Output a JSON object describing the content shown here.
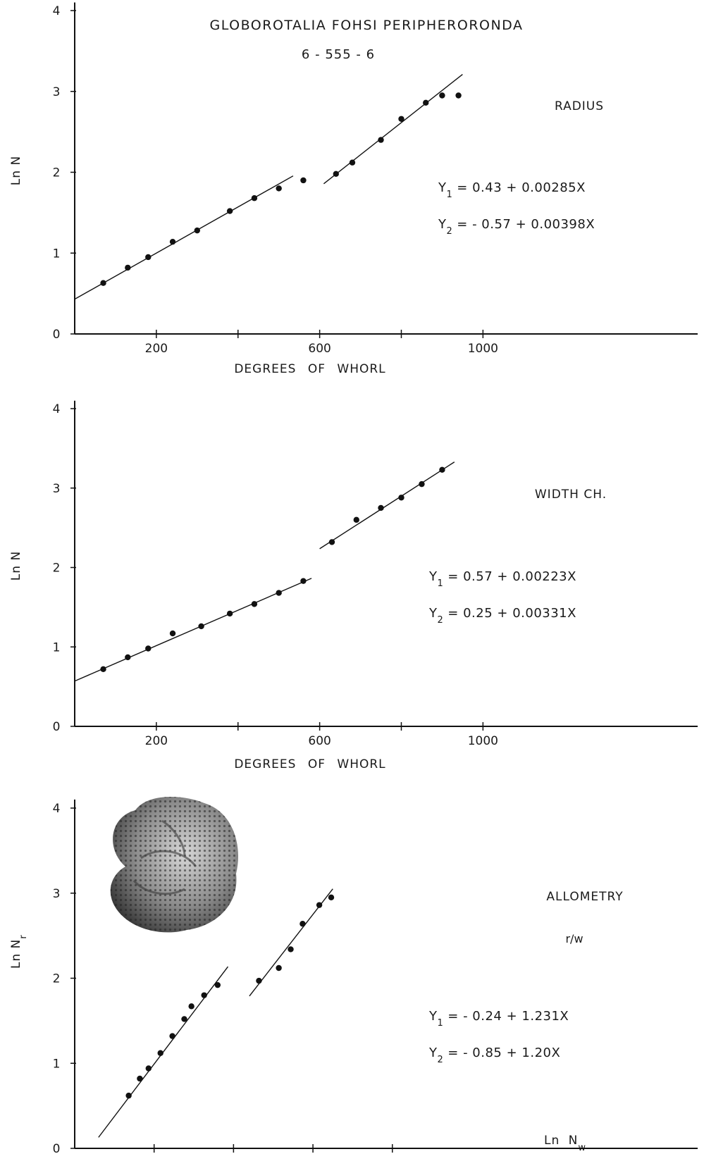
{
  "header": {
    "title": "GLOBOROTALIA FOHSI PERIPHERORONDA",
    "subtitle": "6 - 555 - 6"
  },
  "chart_data": [
    {
      "type": "scatter",
      "panel_label": "RADIUS",
      "xlabel": "DEGREES OF WHORL",
      "ylabel": "Ln N",
      "xlim": [
        0,
        1550
      ],
      "ylim": [
        0,
        4.1
      ],
      "x_ticks": [
        200,
        600,
        1000
      ],
      "x_minor_ticks": [
        400,
        800
      ],
      "y_ticks": [
        0,
        1,
        2,
        3,
        4
      ],
      "series": [
        {
          "x": [
            70,
            130,
            180,
            240,
            300,
            380,
            440,
            500,
            560
          ],
          "y": [
            0.63,
            0.82,
            0.95,
            1.14,
            1.28,
            1.52,
            1.68,
            1.8,
            1.9
          ]
        },
        {
          "x": [
            640,
            680,
            750,
            800,
            860,
            900,
            940
          ],
          "y": [
            1.98,
            2.12,
            2.4,
            2.66,
            2.86,
            2.95,
            2.95
          ]
        }
      ],
      "fits": [
        {
          "label": "Y1",
          "equation": "Y1 = 0.43 + 0.00285X",
          "intercept": 0.43,
          "slope": 0.00285,
          "x_range": [
            0,
            535
          ]
        },
        {
          "label": "Y2",
          "equation": "Y2 = -0.57 + 0.00398X",
          "intercept": -0.57,
          "slope": 0.00398,
          "x_range": [
            610,
            950
          ]
        }
      ],
      "equations": [
        {
          "main": "Y",
          "sub": "1",
          "rest": "= 0.43 + 0.00285X"
        },
        {
          "main": "Y",
          "sub": "2",
          "rest": "= - 0.57 + 0.00398X"
        }
      ]
    },
    {
      "type": "scatter",
      "panel_label": "WIDTH CH.",
      "xlabel": "DEGREES OF WHORL",
      "ylabel": "Ln N",
      "xlim": [
        0,
        1550
      ],
      "ylim": [
        0,
        4.1
      ],
      "x_ticks": [
        200,
        600,
        1000
      ],
      "x_minor_ticks": [
        400,
        800
      ],
      "y_ticks": [
        0,
        1,
        2,
        3,
        4
      ],
      "series": [
        {
          "x": [
            70,
            130,
            180,
            240,
            310,
            380,
            440,
            500,
            560
          ],
          "y": [
            0.72,
            0.87,
            0.98,
            1.17,
            1.26,
            1.42,
            1.54,
            1.68,
            1.83
          ]
        },
        {
          "x": [
            630,
            690,
            750,
            800,
            850,
            900
          ],
          "y": [
            2.32,
            2.6,
            2.75,
            2.88,
            3.05,
            3.23
          ]
        }
      ],
      "fits": [
        {
          "label": "Y1",
          "equation": "Y1 = 0.57 + 0.00223X",
          "intercept": 0.57,
          "slope": 0.00223,
          "x_range": [
            0,
            580
          ]
        },
        {
          "label": "Y2",
          "equation": "Y2 = 0.25 + 0.00331X",
          "intercept": 0.25,
          "slope": 0.00331,
          "x_range": [
            600,
            930
          ]
        }
      ],
      "equations": [
        {
          "main": "Y",
          "sub": "1",
          "rest": "= 0.57 + 0.00223X"
        },
        {
          "main": "Y",
          "sub": "2",
          "rest": "= 0.25 + 0.00331X"
        }
      ]
    },
    {
      "type": "scatter",
      "panel_label": "ALLOMETRY",
      "panel_sublabel": "r/w",
      "xlabel": "Ln N",
      "xlabel_sub": "w",
      "ylabel": "Ln N",
      "ylabel_sub": "r",
      "xlim": [
        0,
        7.8
      ],
      "ylim": [
        0,
        4.1
      ],
      "x_ticks": [
        1,
        2,
        3,
        4
      ],
      "x_minor_ticks": [],
      "y_ticks": [
        0,
        1,
        2,
        3,
        4
      ],
      "series": [
        {
          "x": [
            0.68,
            0.82,
            0.93,
            1.08,
            1.23,
            1.38,
            1.47,
            1.63,
            1.8
          ],
          "y": [
            0.62,
            0.82,
            0.94,
            1.12,
            1.32,
            1.52,
            1.67,
            1.8,
            1.92
          ]
        },
        {
          "x": [
            2.32,
            2.57,
            2.72,
            2.87,
            3.08,
            3.23
          ],
          "y": [
            1.97,
            2.12,
            2.34,
            2.64,
            2.86,
            2.95
          ]
        }
      ],
      "fits": [
        {
          "label": "Y1",
          "equation": "Y1 = -0.24 + 1.231X",
          "intercept": -0.24,
          "slope": 1.231,
          "x_range": [
            0.3,
            1.93
          ]
        },
        {
          "label": "Y2",
          "equation": "Y2 = -0.85 + 1.20X",
          "intercept": -0.85,
          "slope": 1.2,
          "x_range": [
            2.2,
            3.25
          ]
        }
      ],
      "equations": [
        {
          "main": "Y",
          "sub": "1",
          "rest": "= - 0.24 + 1.231X"
        },
        {
          "main": "Y",
          "sub": "2",
          "rest": "= - 0.85 + 1.20X"
        }
      ],
      "specimen_image": "foraminifera-specimen-micrograph"
    }
  ]
}
